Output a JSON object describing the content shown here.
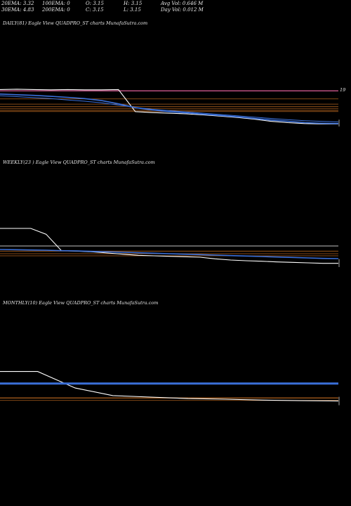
{
  "header": {
    "row1": [
      "20EMA: 3.32",
      "100EMA: 0",
      "O: 3.15",
      "H: 3.15",
      "Avg Vol: 0.646  M"
    ],
    "row2": [
      "30EMA: 4.83",
      "200EMA: 0",
      "C: 3.15",
      "L: 3.15",
      "Day Vol: 0.012  M"
    ]
  },
  "panels": [
    {
      "label": "DAILY(81) Eagle   View  QUADPRO_ST charts MunafaSutra.com",
      "right_tick": "19"
    },
    {
      "label": "WEEKLY(23                              ) Eagle   View  QUADPRO_ST charts MunafaSutra.com",
      "right_tick": ""
    },
    {
      "label": "MONTHLY(10) Eagle   View  QUADPRO_ST charts MunafaSutra.com",
      "right_tick": ""
    }
  ],
  "colors": {
    "background": "#000000",
    "price": "#ffffff",
    "ema_blue": "#3a6fd8",
    "ema_pink": "#e0609a",
    "level_orange": "#b0621e",
    "level_gray": "#9a9a9a"
  },
  "chart_data": [
    {
      "type": "line",
      "timeframe": "daily",
      "x": [
        0,
        4,
        8,
        12,
        16,
        20,
        24,
        28,
        32,
        36,
        40,
        44,
        48,
        52,
        56,
        60,
        64,
        68,
        72,
        76,
        80
      ],
      "series": [
        {
          "values": [
            19.4,
            19.5,
            19.4,
            19.3,
            19.4,
            19.3,
            19.3,
            19.4,
            12.6,
            12.3,
            12.1,
            11.9,
            11.6,
            11.2,
            10.8,
            10.3,
            9.6,
            9.2,
            8.9,
            8.8,
            8.8
          ]
        },
        {
          "values": [
            18.0,
            17.8,
            17.6,
            17.3,
            17.0,
            16.6,
            16.0,
            15.0,
            13.8,
            13.1,
            12.6,
            12.2,
            11.8,
            11.4,
            11.0,
            10.5,
            10.0,
            9.6,
            9.2,
            9.0,
            8.9
          ]
        },
        {
          "values": [
            17.5,
            17.2,
            16.9,
            16.6,
            16.2,
            15.8,
            15.3,
            14.6,
            13.9,
            13.3,
            12.9,
            12.5,
            12.1,
            11.7,
            11.3,
            10.9,
            10.5,
            10.1,
            9.8,
            9.6,
            9.4
          ]
        }
      ],
      "levels": [
        19.0,
        16.5,
        14.9,
        14.2,
        13.6,
        13.0,
        12.6
      ],
      "ylim": [
        8,
        21
      ]
    },
    {
      "type": "line",
      "timeframe": "weekly",
      "x": [
        0,
        1,
        2,
        3,
        4,
        5,
        6,
        7,
        8,
        9,
        10,
        11,
        12,
        13,
        14,
        15,
        16,
        17,
        18,
        19,
        20,
        21,
        22
      ],
      "series": [
        {
          "values": [
            24.5,
            24.5,
            24.5,
            22.0,
            15.0,
            14.8,
            14.5,
            14.0,
            13.5,
            13.0,
            12.8,
            12.6,
            12.4,
            12.2,
            11.5,
            11.0,
            10.7,
            10.5,
            10.2,
            10.0,
            9.8,
            9.6,
            9.6
          ]
        },
        {
          "values": [
            15.5,
            15.4,
            15.3,
            15.2,
            15.0,
            14.9,
            14.7,
            14.5,
            14.3,
            14.1,
            13.9,
            13.7,
            13.5,
            13.3,
            13.1,
            12.9,
            12.7,
            12.5,
            12.3,
            12.1,
            11.9,
            11.7,
            11.6
          ]
        }
      ],
      "levels": [
        17.0,
        14.8,
        13.7,
        12.8
      ],
      "ylim": [
        8,
        26
      ]
    },
    {
      "type": "line",
      "timeframe": "monthly",
      "x": [
        0,
        1,
        2,
        3,
        4,
        5,
        6,
        7,
        8,
        9
      ],
      "series": [
        {
          "values": [
            26.0,
            26.0,
            20.5,
            18.0,
            17.5,
            17.0,
            16.8,
            16.5,
            16.3,
            16.2
          ]
        },
        {
          "values": [
            22.0,
            22.0,
            22.0,
            22.0,
            22.0,
            22.0,
            22.0,
            22.0,
            22.0,
            22.0
          ]
        }
      ],
      "levels": [
        17.2,
        16.4
      ],
      "ylim": [
        14,
        28
      ]
    }
  ]
}
